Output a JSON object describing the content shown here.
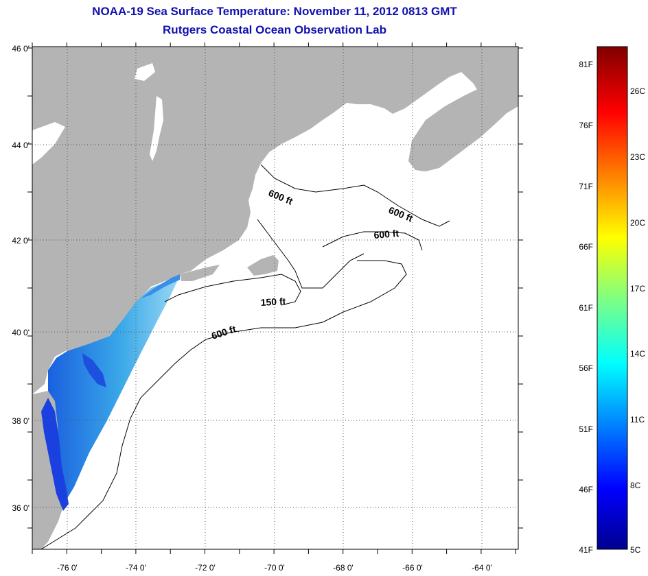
{
  "title": {
    "line1": "NOAA-19 Sea Surface Temperature:  November 11, 2012 0813 GMT",
    "line2": "Rutgers Coastal Ocean Observation Lab"
  },
  "lat_labels": [
    "46 0'",
    "44 0'",
    "42 0'",
    "40 0'",
    "38 0'",
    "36 0'"
  ],
  "lon_labels": [
    "-76 0'",
    "-74 0'",
    "-72 0'",
    "-70 0'",
    "-68 0'",
    "-66 0'",
    "-64 0'"
  ],
  "contour_labels": [
    {
      "text": "600 ft",
      "angle": 22
    },
    {
      "text": "600 ft",
      "angle": 22
    },
    {
      "text": "600 ft",
      "angle": -5
    },
    {
      "text": "150 ft",
      "angle": -3
    },
    {
      "text": "600 ft",
      "angle": -18
    }
  ],
  "colorbar": {
    "fahrenheit": [
      "81F",
      "76F",
      "71F",
      "66F",
      "61F",
      "56F",
      "51F",
      "46F",
      "41F"
    ],
    "celsius": [
      "26C",
      "23C",
      "20C",
      "17C",
      "14C",
      "11C",
      "8C",
      "5C"
    ]
  },
  "colors": {
    "land": "#b4b4b4",
    "lake": "#ffffff",
    "title": "#1010b0",
    "sst_warm": "#40c0e8",
    "sst_cold": "#1020e0"
  }
}
